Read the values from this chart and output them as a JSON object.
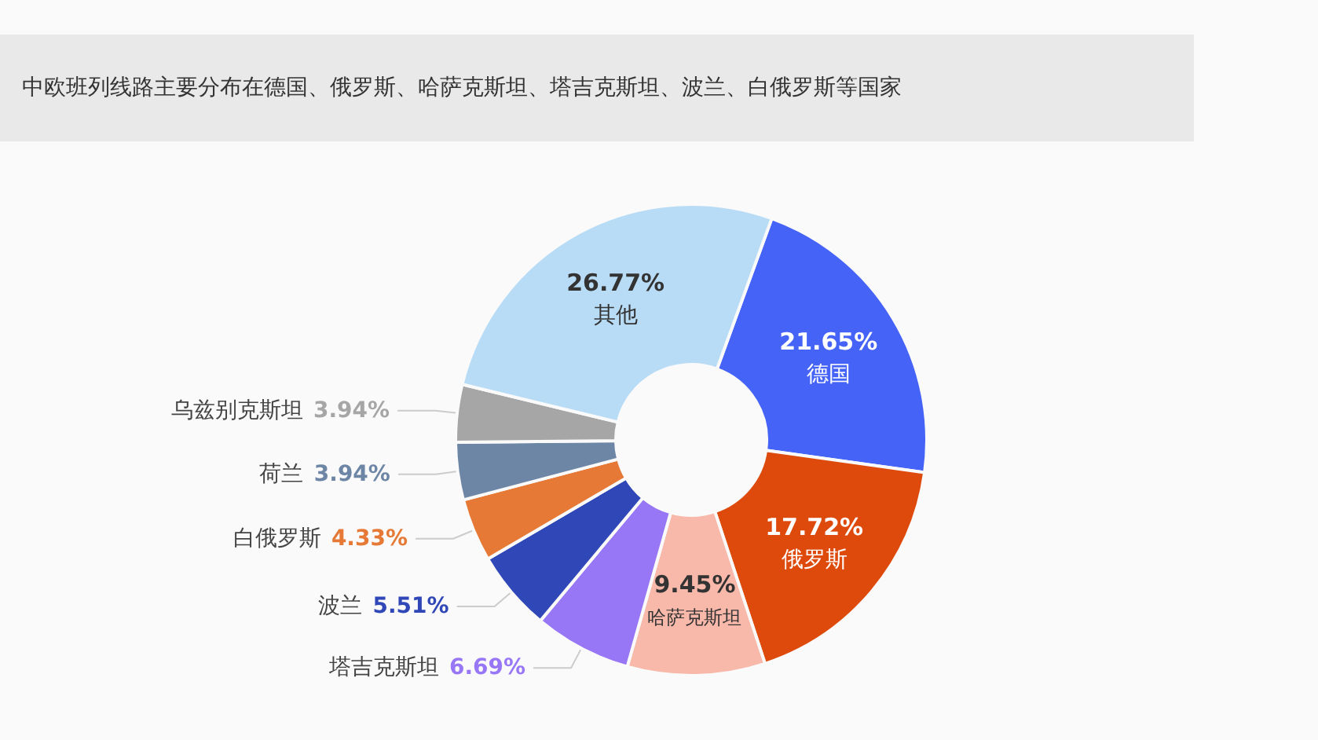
{
  "chart_data": {
    "type": "donut",
    "title": "中欧班列线路主要分布在德国、俄罗斯、哈萨克斯坦、塔吉克斯坦、波兰、白俄罗斯等国家",
    "categories": [
      "德国",
      "俄罗斯",
      "哈萨克斯坦",
      "塔吉克斯坦",
      "波兰",
      "白俄罗斯",
      "荷兰",
      "乌兹别克斯坦",
      "其他"
    ],
    "values": [
      21.65,
      17.72,
      9.45,
      6.69,
      5.51,
      4.33,
      3.94,
      3.94,
      26.77
    ],
    "colors": [
      "#4563f7",
      "#de4a0c",
      "#f8b8aa",
      "#9877f7",
      "#2f47b7",
      "#e67936",
      "#6e86a6",
      "#a6a6a6",
      "#b9dcf6"
    ],
    "value_labels": [
      "21.65%",
      "17.72%",
      "9.45%",
      "6.69%",
      "5.51%",
      "4.33%",
      "3.94%",
      "3.94%",
      "26.77%"
    ]
  }
}
